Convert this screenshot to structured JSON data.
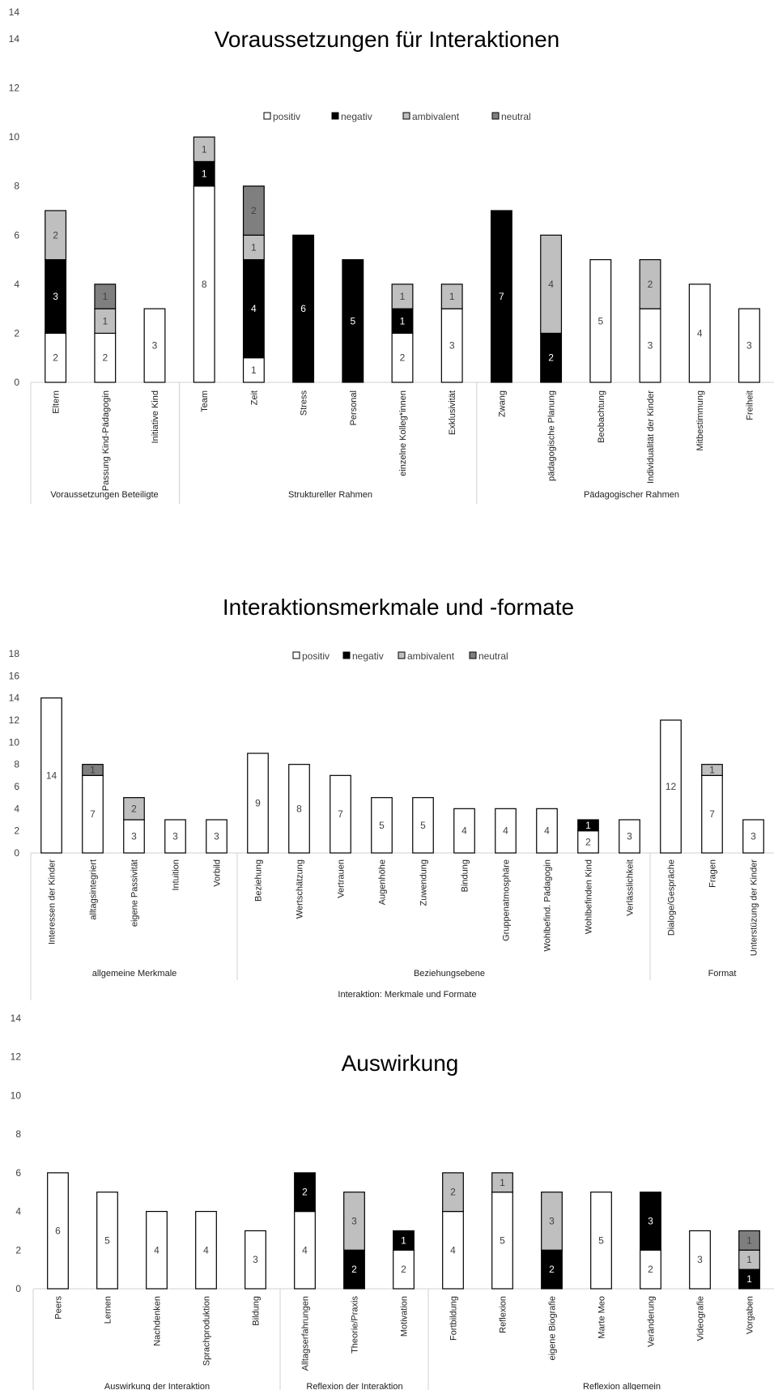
{
  "chart_data": [
    {
      "type": "bar",
      "title": "Voraussetzungen für Interaktionen",
      "stacked": true,
      "ylim": [
        0,
        14
      ],
      "yticks": [
        0,
        2,
        4,
        6,
        8,
        10,
        12,
        14
      ],
      "extra_top_tick": "14",
      "legend": {
        "placement": "top",
        "entries": [
          "positiv",
          "negativ",
          "ambivalent",
          "neutral"
        ]
      },
      "series": [
        {
          "name": "positiv",
          "color": "#ffffff"
        },
        {
          "name": "negativ",
          "color": "#000000"
        },
        {
          "name": "ambivalent",
          "color": "#bfbfbf"
        },
        {
          "name": "neutral",
          "color": "#7f7f7f"
        }
      ],
      "categories": [
        "Eltern",
        "Passung Kind-Pädagogin",
        "Initiative Kind",
        "Team",
        "Zeit",
        "Stress",
        "Personal",
        "einzelne Kolleg*innen",
        "Exklusivität",
        "Zwang",
        "pädagogische Planung",
        "Beobachtung",
        "Individualität der Kinder",
        "Mitbestimmung",
        "Freiheit"
      ],
      "values": [
        [
          2,
          3,
          2,
          0
        ],
        [
          2,
          0,
          1,
          1
        ],
        [
          3,
          0,
          0,
          0
        ],
        [
          8,
          1,
          1,
          0
        ],
        [
          1,
          4,
          1,
          2
        ],
        [
          0,
          6,
          0,
          0
        ],
        [
          0,
          5,
          0,
          0
        ],
        [
          2,
          1,
          1,
          0
        ],
        [
          3,
          0,
          1,
          0
        ],
        [
          0,
          7,
          0,
          0
        ],
        [
          0,
          2,
          4,
          0
        ],
        [
          5,
          0,
          0,
          0
        ],
        [
          3,
          0,
          2,
          0
        ],
        [
          4,
          0,
          0,
          0
        ],
        [
          3,
          0,
          0,
          0
        ]
      ],
      "groups": [
        {
          "label": "Voraussetzungen Beteiligte",
          "count": 3
        },
        {
          "label": "Struktureller Rahmen",
          "count": 6
        },
        {
          "label": "Pädagogischer Rahmen",
          "count": 6
        }
      ],
      "xlabel": ""
    },
    {
      "type": "bar",
      "title": "Interaktionsmerkmale und -formate",
      "stacked": true,
      "ylim": [
        0,
        18
      ],
      "yticks": [
        0,
        2,
        4,
        6,
        8,
        10,
        12,
        14,
        16,
        18
      ],
      "legend": {
        "placement": "top",
        "entries": [
          "positiv",
          "negativ",
          "ambivalent",
          "neutral"
        ]
      },
      "series": [
        {
          "name": "positiv",
          "color": "#ffffff"
        },
        {
          "name": "negativ",
          "color": "#000000"
        },
        {
          "name": "ambivalent",
          "color": "#bfbfbf"
        },
        {
          "name": "neutral",
          "color": "#7f7f7f"
        }
      ],
      "categories": [
        "Interessen der Kinder",
        "alltagsintegriert",
        "eigene Passivität",
        "Intuition",
        "Vorbild",
        "Beziehung",
        "Wertschätzung",
        "Vertrauen",
        "Augenhöhe",
        "Zuwendung",
        "Bindung",
        "Gruppenatmosphäre",
        "Wohlbefind. Pädagogin",
        "Wohlbefinden Kind",
        "Verlässlichkeit",
        "Dialoge/Gespräche",
        "Fragen",
        "Unterstüzung der Kinder"
      ],
      "values": [
        [
          14,
          0,
          0,
          0
        ],
        [
          7,
          0,
          0,
          1
        ],
        [
          3,
          0,
          2,
          0
        ],
        [
          3,
          0,
          0,
          0
        ],
        [
          3,
          0,
          0,
          0
        ],
        [
          9,
          0,
          0,
          0
        ],
        [
          8,
          0,
          0,
          0
        ],
        [
          7,
          0,
          0,
          0
        ],
        [
          5,
          0,
          0,
          0
        ],
        [
          5,
          0,
          0,
          0
        ],
        [
          4,
          0,
          0,
          0
        ],
        [
          4,
          0,
          0,
          0
        ],
        [
          4,
          0,
          0,
          0
        ],
        [
          2,
          1,
          0,
          0
        ],
        [
          3,
          0,
          0,
          0
        ],
        [
          12,
          0,
          0,
          0
        ],
        [
          7,
          0,
          1,
          0
        ],
        [
          3,
          0,
          0,
          0
        ]
      ],
      "groups": [
        {
          "label": "allgemeine Merkmale",
          "count": 5
        },
        {
          "label": "Beziehungsebene",
          "count": 10
        },
        {
          "label": "Format",
          "count": 3
        }
      ],
      "xlabel": "Interaktion: Merkmale und Formate"
    },
    {
      "type": "bar",
      "title": "Auswirkung",
      "stacked": true,
      "ylim": [
        0,
        14
      ],
      "yticks": [
        0,
        2,
        4,
        6,
        8,
        10,
        12,
        14
      ],
      "legend": null,
      "series": [
        {
          "name": "positiv",
          "color": "#ffffff"
        },
        {
          "name": "negativ",
          "color": "#000000"
        },
        {
          "name": "ambivalent",
          "color": "#bfbfbf"
        },
        {
          "name": "neutral",
          "color": "#7f7f7f"
        }
      ],
      "categories": [
        "Peers",
        "Lernen",
        "Nachdenken",
        "Sprachproduktion",
        "Bildung",
        "Alltagserfahrungen",
        "Theorie/Praxis",
        "Motivation",
        "Fortbildung",
        "Reflexion",
        "eigene Biografie",
        "Marte Meo",
        "Veränderung",
        "Videografie",
        "Vorgaben"
      ],
      "values": [
        [
          6,
          0,
          0,
          0
        ],
        [
          5,
          0,
          0,
          0
        ],
        [
          4,
          0,
          0,
          0
        ],
        [
          4,
          0,
          0,
          0
        ],
        [
          3,
          0,
          0,
          0
        ],
        [
          4,
          2,
          0,
          0
        ],
        [
          0,
          2,
          3,
          0
        ],
        [
          2,
          1,
          0,
          0
        ],
        [
          4,
          0,
          2,
          0
        ],
        [
          5,
          0,
          1,
          0
        ],
        [
          0,
          2,
          3,
          0
        ],
        [
          5,
          0,
          0,
          0
        ],
        [
          2,
          3,
          0,
          0
        ],
        [
          3,
          0,
          0,
          0
        ],
        [
          0,
          1,
          1,
          1
        ]
      ],
      "groups": [
        {
          "label": "Auswirkung der Interaktion",
          "count": 5
        },
        {
          "label": "Reflexion der Interaktion",
          "count": 3
        },
        {
          "label": "Reflexion allgemein",
          "count": 7
        }
      ],
      "xlabel": ""
    }
  ]
}
